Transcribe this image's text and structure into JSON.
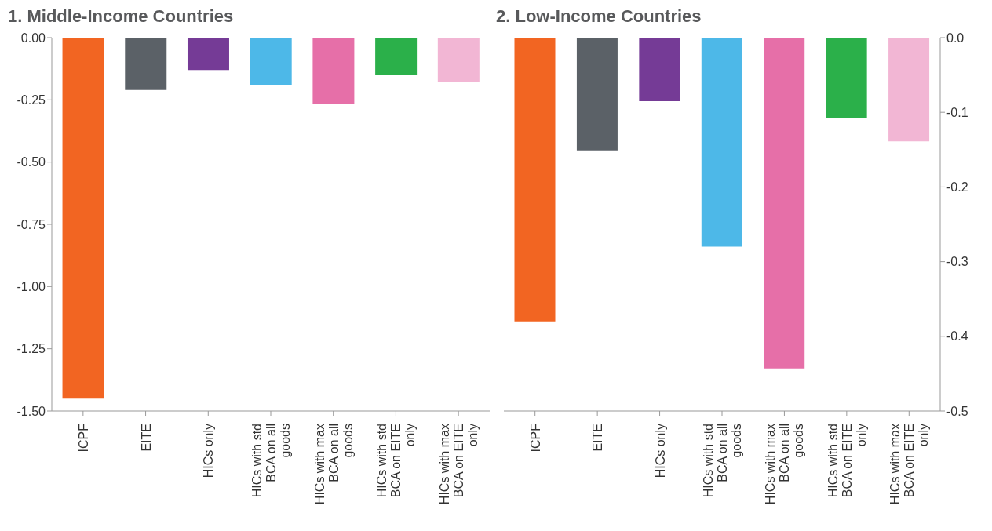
{
  "chart_data": [
    {
      "type": "bar",
      "title": "1. Middle-Income Countries",
      "categories": [
        "ICPF",
        "EITE",
        "HICs only",
        "HICs with std BCA on all goods",
        "HICs with max BCA on all goods",
        "HICs with std BCA on EITE only",
        "HICs with max BCA on EITE only"
      ],
      "series": [
        {
          "values": [
            -1.45,
            -0.21,
            -0.13,
            -0.19,
            -0.265,
            -0.15,
            -0.18
          ]
        }
      ],
      "colors": [
        "#f26522",
        "#5b6167",
        "#753b96",
        "#4db8e8",
        "#e66fa8",
        "#2bb04a",
        "#f2b6d4"
      ],
      "ylim": [
        -1.5,
        0
      ],
      "yticks": [
        {
          "value": 0,
          "label": "0.00"
        },
        {
          "value": -0.25,
          "label": "-0.25"
        },
        {
          "value": -0.5,
          "label": "-0.50"
        },
        {
          "value": -0.75,
          "label": "-0.75"
        },
        {
          "value": -1,
          "label": "-1.00"
        },
        {
          "value": -1.25,
          "label": "-1.25"
        },
        {
          "value": -1.5,
          "label": "-1.50"
        }
      ],
      "grid": false
    },
    {
      "type": "bar",
      "title": "2. Low-Income Countries",
      "categories": [
        "ICPF",
        "EITE",
        "HICs only",
        "HICs with std BCA on all goods",
        "HICs with max BCA on all goods",
        "HICs with std BCA on EITE only",
        "HICs with max BCA on EITE only"
      ],
      "series": [
        {
          "values": [
            -0.38,
            -0.151,
            -0.085,
            -0.28,
            -0.443,
            -0.108,
            -0.139
          ],
          "axis": "y2"
        }
      ],
      "colors": [
        "#f26522",
        "#5b6167",
        "#753b96",
        "#4db8e8",
        "#e66fa8",
        "#2bb04a",
        "#f2b6d4"
      ],
      "y2lim": [
        -0.5,
        0
      ],
      "y2ticks": [
        {
          "value": 0,
          "label": "0.0"
        },
        {
          "value": -0.1,
          "label": "-0.1"
        },
        {
          "value": -0.2,
          "label": "-0.2"
        },
        {
          "value": -0.3,
          "label": "-0.3"
        },
        {
          "value": -0.4,
          "label": "-0.4"
        },
        {
          "value": -0.5,
          "label": "-0.5"
        }
      ],
      "grid": false
    }
  ]
}
